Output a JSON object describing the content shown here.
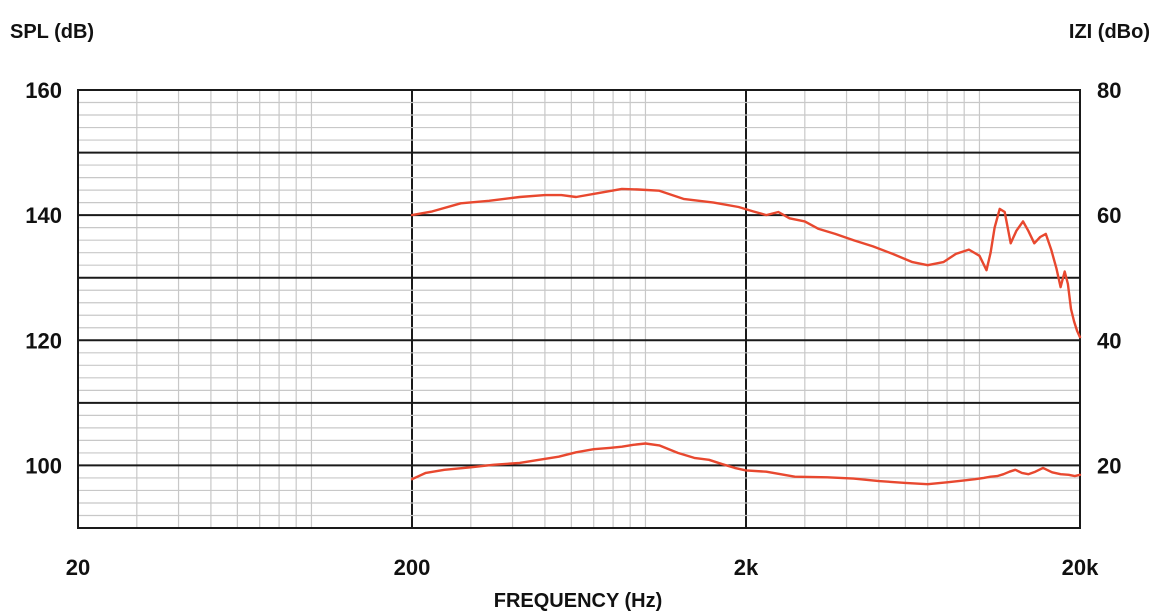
{
  "chart_data": {
    "type": "line",
    "title": "",
    "xlabel": "FREQUENCY (Hz)",
    "ylabel_left": "SPL (dB)",
    "ylabel_right": "IZI (dBo)",
    "x_scale": "log",
    "xlim": [
      20,
      20000
    ],
    "ylim_left": [
      90,
      160
    ],
    "ylim_right": [
      10,
      80
    ],
    "x_tick_labels": [
      {
        "value": 20,
        "label": "20"
      },
      {
        "value": 200,
        "label": "200"
      },
      {
        "value": 2000,
        "label": "2k"
      },
      {
        "value": 20000,
        "label": "20k"
      }
    ],
    "y_left_tick_labels": [
      {
        "value": 160,
        "label": "160"
      },
      {
        "value": 140,
        "label": "140"
      },
      {
        "value": 120,
        "label": "120"
      },
      {
        "value": 100,
        "label": "100"
      }
    ],
    "y_right_tick_labels": [
      {
        "value": 80,
        "label": "80"
      },
      {
        "value": 60,
        "label": "60"
      },
      {
        "value": 40,
        "label": "40"
      },
      {
        "value": 20,
        "label": "20"
      }
    ],
    "grid": true,
    "line_color": "#e8482f",
    "series": [
      {
        "axis": "left",
        "x": [
          200,
          230,
          280,
          340,
          420,
          500,
          560,
          620,
          720,
          850,
          950,
          1100,
          1300,
          1600,
          1900,
          2100,
          2300,
          2500,
          2700,
          3000,
          3300,
          3700,
          4200,
          4800,
          5500,
          6300,
          7000,
          7800,
          8500,
          9300,
          10000,
          10500,
          10800,
          11100,
          11500,
          11900,
          12400,
          12900,
          13500,
          14000,
          14600,
          15200,
          15800,
          16400,
          17000,
          17500,
          18000,
          18400,
          18800,
          19200,
          19600,
          20000
        ],
        "y": [
          140,
          140.6,
          141.9,
          142.3,
          142.9,
          143.2,
          143.2,
          142.9,
          143.5,
          144.2,
          144.1,
          143.9,
          142.6,
          142.0,
          141.3,
          140.6,
          140.0,
          140.5,
          139.5,
          139.0,
          137.8,
          137.0,
          136.0,
          135.0,
          133.8,
          132.5,
          132.0,
          132.5,
          133.8,
          134.5,
          133.5,
          131.2,
          134.0,
          138.0,
          141.0,
          140.5,
          135.5,
          137.5,
          139.0,
          137.5,
          135.5,
          136.5,
          137.0,
          134.5,
          131.5,
          128.5,
          131.0,
          129.0,
          125.0,
          123.0,
          121.5,
          120.5
        ]
      },
      {
        "axis": "right",
        "x": [
          200,
          220,
          250,
          300,
          350,
          420,
          480,
          550,
          620,
          700,
          780,
          850,
          920,
          1000,
          1100,
          1250,
          1400,
          1550,
          1700,
          1850,
          2000,
          2300,
          2800,
          3500,
          4200,
          5000,
          6000,
          7000,
          8000,
          9000,
          9700,
          10300,
          10800,
          11300,
          11800,
          12300,
          12800,
          13400,
          14000,
          14700,
          15500,
          16500,
          17500,
          18500,
          19300,
          20000
        ],
        "y": [
          17.8,
          18.8,
          19.3,
          19.7,
          20.1,
          20.4,
          20.9,
          21.4,
          22.1,
          22.6,
          22.8,
          23.0,
          23.3,
          23.5,
          23.2,
          22.0,
          21.2,
          20.9,
          20.2,
          19.6,
          19.2,
          19.0,
          18.2,
          18.1,
          17.9,
          17.5,
          17.2,
          17.0,
          17.3,
          17.6,
          17.8,
          18.0,
          18.2,
          18.3,
          18.6,
          19.0,
          19.3,
          18.8,
          18.6,
          19.0,
          19.6,
          18.9,
          18.6,
          18.5,
          18.3,
          18.5
        ]
      }
    ]
  }
}
